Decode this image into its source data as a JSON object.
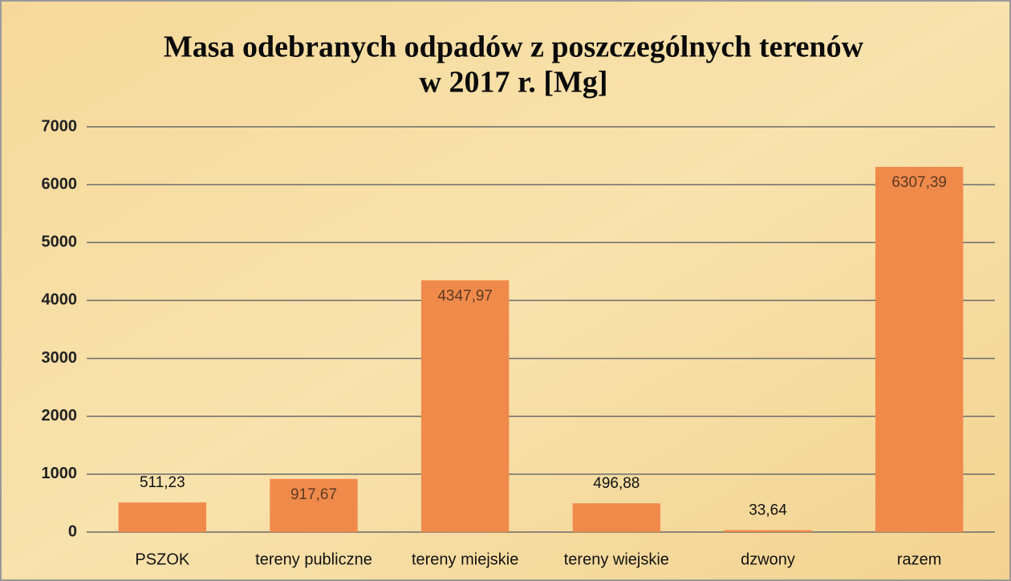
{
  "chart_data": {
    "type": "bar",
    "title": [
      "Masa odebranych odpadów z poszczególnych terenów",
      "w 2017 r. [Mg]"
    ],
    "categories": [
      "PSZOK",
      "tereny publiczne",
      "tereny miejskie",
      "tereny wiejskie",
      "dzwony",
      "razem"
    ],
    "values": [
      511.23,
      917.67,
      4347.97,
      496.88,
      33.64,
      6307.39
    ],
    "value_labels": [
      "511,23",
      "917,67",
      "4347,97",
      "496,88",
      "33,64",
      "6307,39"
    ],
    "color": "#f08a4b",
    "ylim": [
      0,
      7000
    ],
    "yticks": [
      0,
      1000,
      2000,
      3000,
      4000,
      5000,
      6000,
      7000
    ],
    "grid": true
  }
}
